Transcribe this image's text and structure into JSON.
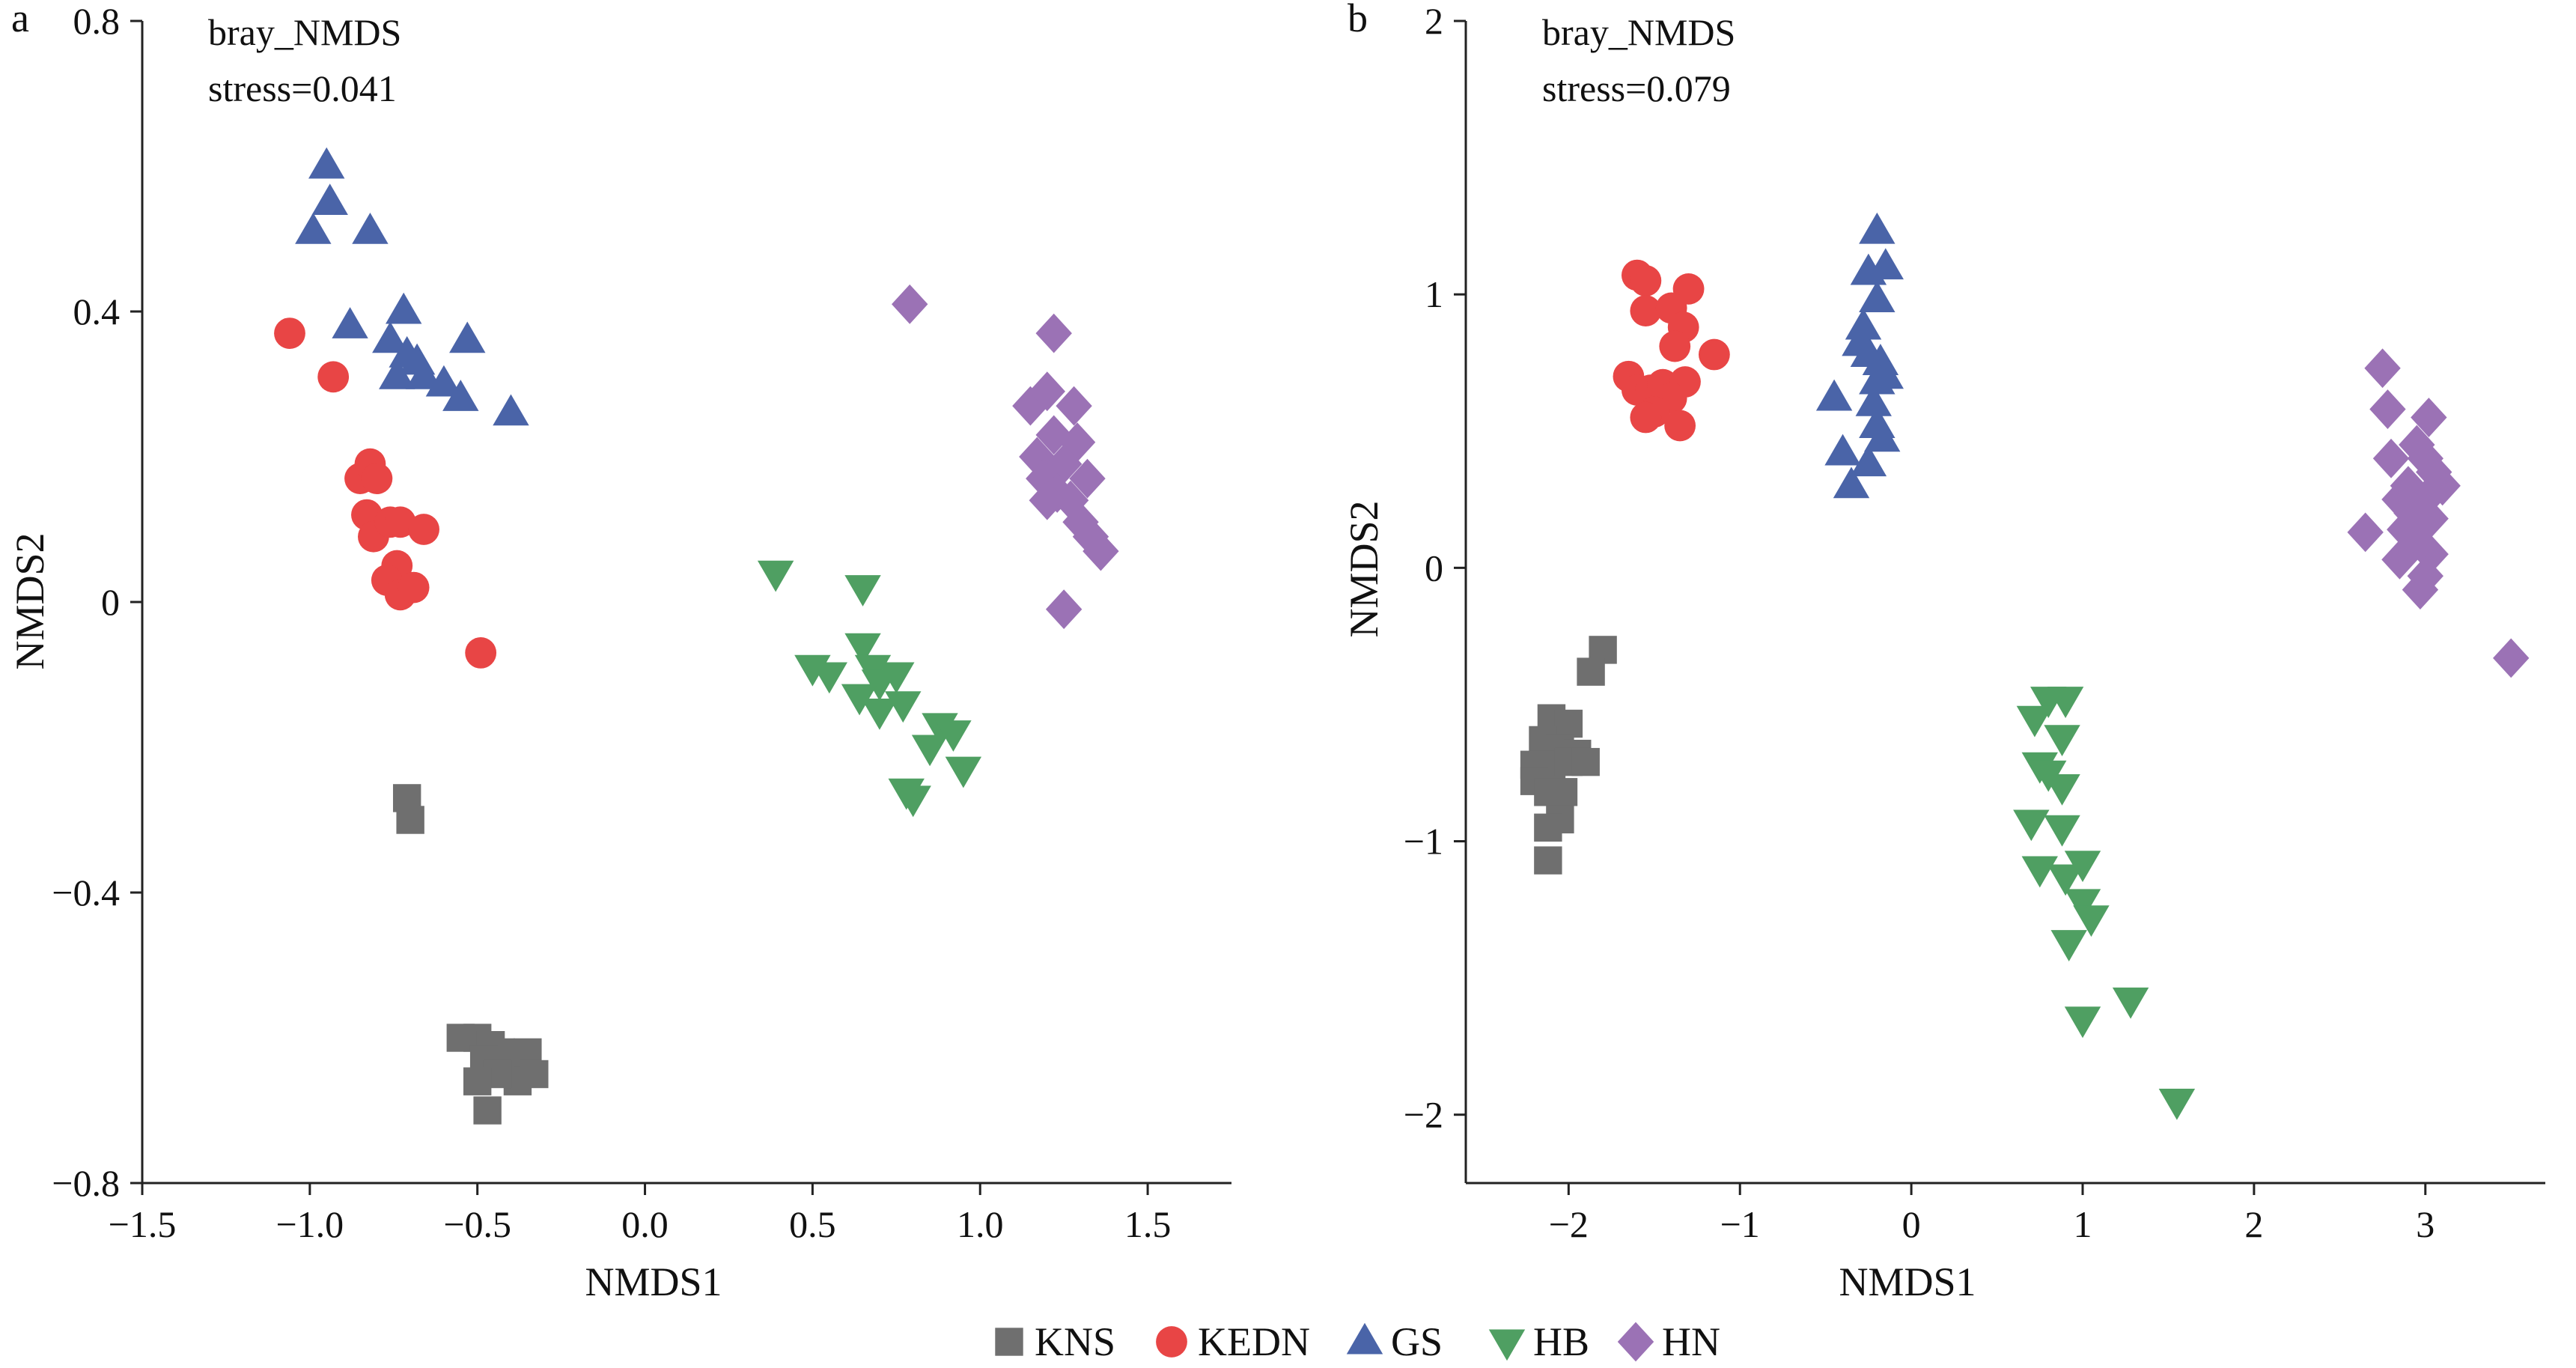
{
  "legend": [
    {
      "name": "KNS",
      "color": "#6f6f6f",
      "shape": "square"
    },
    {
      "name": "KEDN",
      "color": "#e84545",
      "shape": "circle"
    },
    {
      "name": "GS",
      "color": "#4a64a8",
      "shape": "triangle-up"
    },
    {
      "name": "HB",
      "color": "#4f9f62",
      "shape": "triangle-down"
    },
    {
      "name": "HN",
      "color": "#9b72b5",
      "shape": "diamond"
    }
  ],
  "chart_data": [
    {
      "type": "scatter",
      "panel_label": "a",
      "annotation": [
        "bray_NMDS",
        "stress=0.041"
      ],
      "xlabel": "NMDS1",
      "ylabel": "NMDS2",
      "xlim": [
        -1.5,
        1.75
      ],
      "ylim": [
        -0.8,
        0.8
      ],
      "xticks": [
        -1.5,
        -1.0,
        -0.5,
        0.0,
        0.5,
        1.0,
        1.5
      ],
      "xtick_labels": [
        "−1.5",
        "−1.0",
        "−0.5",
        "0.0",
        "0.5",
        "1.0",
        "1.5"
      ],
      "yticks": [
        -0.8,
        -0.4,
        0,
        0.4,
        0.8
      ],
      "ytick_labels": [
        "−0.8",
        "−0.4",
        "0",
        "0.4",
        "0.8"
      ],
      "grid": false,
      "series": [
        {
          "name": "KNS",
          "points": [
            [
              -0.71,
              -0.27
            ],
            [
              -0.7,
              -0.3
            ],
            [
              -0.55,
              -0.6
            ],
            [
              -0.5,
              -0.6
            ],
            [
              -0.46,
              -0.61
            ],
            [
              -0.43,
              -0.62
            ],
            [
              -0.48,
              -0.63
            ],
            [
              -0.4,
              -0.64
            ],
            [
              -0.35,
              -0.62
            ],
            [
              -0.33,
              -0.65
            ],
            [
              -0.38,
              -0.66
            ],
            [
              -0.44,
              -0.65
            ],
            [
              -0.5,
              -0.66
            ],
            [
              -0.47,
              -0.7
            ]
          ]
        },
        {
          "name": "KEDN",
          "points": [
            [
              -1.06,
              0.37
            ],
            [
              -0.93,
              0.31
            ],
            [
              -0.85,
              0.17
            ],
            [
              -0.82,
              0.19
            ],
            [
              -0.8,
              0.17
            ],
            [
              -0.83,
              0.12
            ],
            [
              -0.81,
              0.09
            ],
            [
              -0.76,
              0.11
            ],
            [
              -0.73,
              0.11
            ],
            [
              -0.66,
              0.1
            ],
            [
              -0.74,
              0.05
            ],
            [
              -0.77,
              0.03
            ],
            [
              -0.73,
              0.01
            ],
            [
              -0.69,
              0.02
            ],
            [
              -0.49,
              -0.07
            ]
          ]
        },
        {
          "name": "GS",
          "points": [
            [
              -0.95,
              0.6
            ],
            [
              -0.94,
              0.55
            ],
            [
              -0.99,
              0.51
            ],
            [
              -0.82,
              0.51
            ],
            [
              -0.88,
              0.38
            ],
            [
              -0.72,
              0.4
            ],
            [
              -0.76,
              0.36
            ],
            [
              -0.71,
              0.34
            ],
            [
              -0.68,
              0.33
            ],
            [
              -0.74,
              0.31
            ],
            [
              -0.66,
              0.31
            ],
            [
              -0.6,
              0.3
            ],
            [
              -0.53,
              0.36
            ],
            [
              -0.55,
              0.28
            ],
            [
              -0.4,
              0.26
            ]
          ]
        },
        {
          "name": "HB",
          "points": [
            [
              0.39,
              0.04
            ],
            [
              0.65,
              0.02
            ],
            [
              0.5,
              -0.09
            ],
            [
              0.55,
              -0.1
            ],
            [
              0.65,
              -0.06
            ],
            [
              0.68,
              -0.09
            ],
            [
              0.7,
              -0.11
            ],
            [
              0.75,
              -0.1
            ],
            [
              0.64,
              -0.13
            ],
            [
              0.7,
              -0.15
            ],
            [
              0.77,
              -0.14
            ],
            [
              0.88,
              -0.17
            ],
            [
              0.92,
              -0.18
            ],
            [
              0.85,
              -0.2
            ],
            [
              0.95,
              -0.23
            ],
            [
              0.78,
              -0.26
            ],
            [
              0.8,
              -0.27
            ]
          ]
        },
        {
          "name": "HN",
          "points": [
            [
              0.79,
              0.41
            ],
            [
              1.22,
              0.37
            ],
            [
              1.15,
              0.27
            ],
            [
              1.2,
              0.29
            ],
            [
              1.28,
              0.27
            ],
            [
              1.22,
              0.23
            ],
            [
              1.29,
              0.22
            ],
            [
              1.17,
              0.2
            ],
            [
              1.25,
              0.19
            ],
            [
              1.19,
              0.17
            ],
            [
              1.23,
              0.15
            ],
            [
              1.32,
              0.17
            ],
            [
              1.27,
              0.14
            ],
            [
              1.2,
              0.14
            ],
            [
              1.3,
              0.11
            ],
            [
              1.33,
              0.09
            ],
            [
              1.36,
              0.07
            ],
            [
              1.25,
              -0.01
            ]
          ]
        }
      ]
    },
    {
      "type": "scatter",
      "panel_label": "b",
      "annotation": [
        "bray_NMDS",
        "stress=0.079"
      ],
      "xlabel": "NMDS1",
      "ylabel": "NMDS2",
      "xlim": [
        -2.6,
        3.7
      ],
      "ylim": [
        -2.25,
        2.0
      ],
      "xticks": [
        -2,
        -1,
        0,
        1,
        2,
        3
      ],
      "xtick_labels": [
        "−2",
        "−1",
        "0",
        "1",
        "2",
        "3"
      ],
      "yticks": [
        -2,
        -1,
        0,
        1,
        2
      ],
      "ytick_labels": [
        "−2",
        "−1",
        "0",
        "1",
        "2"
      ],
      "grid": false,
      "series": [
        {
          "name": "KNS",
          "points": [
            [
              -1.8,
              -0.3
            ],
            [
              -1.87,
              -0.38
            ],
            [
              -2.1,
              -0.55
            ],
            [
              -2.0,
              -0.57
            ],
            [
              -2.15,
              -0.63
            ],
            [
              -2.05,
              -0.66
            ],
            [
              -1.95,
              -0.68
            ],
            [
              -2.2,
              -0.72
            ],
            [
              -2.1,
              -0.72
            ],
            [
              -2.0,
              -0.71
            ],
            [
              -1.9,
              -0.71
            ],
            [
              -2.2,
              -0.78
            ],
            [
              -2.12,
              -0.82
            ],
            [
              -2.03,
              -0.82
            ],
            [
              -2.05,
              -0.92
            ],
            [
              -2.12,
              -0.95
            ],
            [
              -2.12,
              -1.07
            ]
          ]
        },
        {
          "name": "KEDN",
          "points": [
            [
              -1.6,
              1.07
            ],
            [
              -1.55,
              1.05
            ],
            [
              -1.3,
              1.02
            ],
            [
              -1.55,
              0.94
            ],
            [
              -1.4,
              0.95
            ],
            [
              -1.33,
              0.88
            ],
            [
              -1.38,
              0.81
            ],
            [
              -1.15,
              0.78
            ],
            [
              -1.65,
              0.7
            ],
            [
              -1.6,
              0.65
            ],
            [
              -1.52,
              0.65
            ],
            [
              -1.45,
              0.67
            ],
            [
              -1.32,
              0.68
            ],
            [
              -1.4,
              0.62
            ],
            [
              -1.5,
              0.57
            ],
            [
              -1.55,
              0.55
            ],
            [
              -1.35,
              0.52
            ]
          ]
        },
        {
          "name": "GS",
          "points": [
            [
              -0.2,
              1.23
            ],
            [
              -0.25,
              1.08
            ],
            [
              -0.15,
              1.1
            ],
            [
              -0.2,
              0.98
            ],
            [
              -0.28,
              0.88
            ],
            [
              -0.3,
              0.82
            ],
            [
              -0.25,
              0.78
            ],
            [
              -0.18,
              0.75
            ],
            [
              -0.15,
              0.7
            ],
            [
              -0.2,
              0.68
            ],
            [
              -0.45,
              0.62
            ],
            [
              -0.22,
              0.6
            ],
            [
              -0.2,
              0.52
            ],
            [
              -0.17,
              0.47
            ],
            [
              -0.4,
              0.42
            ],
            [
              -0.25,
              0.38
            ],
            [
              -0.35,
              0.3
            ]
          ]
        },
        {
          "name": "HB",
          "points": [
            [
              0.8,
              -0.48
            ],
            [
              0.9,
              -0.48
            ],
            [
              0.72,
              -0.55
            ],
            [
              0.88,
              -0.62
            ],
            [
              0.75,
              -0.72
            ],
            [
              0.8,
              -0.75
            ],
            [
              0.88,
              -0.8
            ],
            [
              0.7,
              -0.93
            ],
            [
              0.88,
              -0.95
            ],
            [
              1.0,
              -1.08
            ],
            [
              0.75,
              -1.1
            ],
            [
              0.9,
              -1.13
            ],
            [
              1.0,
              -1.22
            ],
            [
              1.05,
              -1.28
            ],
            [
              0.92,
              -1.37
            ],
            [
              1.28,
              -1.58
            ],
            [
              1.0,
              -1.65
            ],
            [
              1.55,
              -1.95
            ]
          ]
        },
        {
          "name": "HN",
          "points": [
            [
              2.75,
              0.73
            ],
            [
              3.02,
              0.55
            ],
            [
              2.78,
              0.58
            ],
            [
              2.95,
              0.45
            ],
            [
              2.8,
              0.4
            ],
            [
              3.0,
              0.4
            ],
            [
              3.05,
              0.35
            ],
            [
              2.9,
              0.3
            ],
            [
              3.1,
              0.3
            ],
            [
              2.85,
              0.25
            ],
            [
              3.0,
              0.25
            ],
            [
              2.92,
              0.2
            ],
            [
              3.03,
              0.18
            ],
            [
              2.88,
              0.14
            ],
            [
              2.65,
              0.13
            ],
            [
              2.95,
              0.1
            ],
            [
              3.03,
              0.05
            ],
            [
              2.85,
              0.03
            ],
            [
              3.0,
              -0.03
            ],
            [
              2.97,
              -0.08
            ],
            [
              3.5,
              -0.33
            ]
          ]
        }
      ]
    }
  ]
}
